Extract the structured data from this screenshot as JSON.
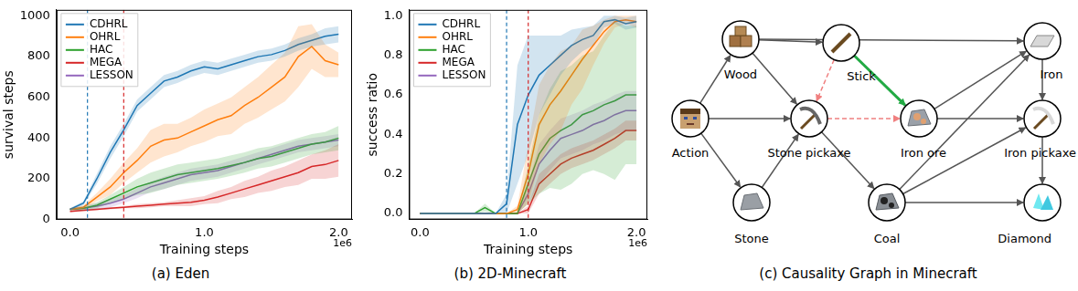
{
  "chart_data": [
    {
      "type": "line",
      "title": "(a) Eden",
      "x_label": "Training steps",
      "y_label": "survival steps",
      "x_offset_label": "1e6",
      "x": [
        0,
        0.1,
        0.2,
        0.3,
        0.4,
        0.5,
        0.6,
        0.7,
        0.8,
        0.9,
        1.0,
        1.1,
        1.2,
        1.3,
        1.4,
        1.5,
        1.6,
        1.7,
        1.8,
        1.9,
        2.0
      ],
      "xlim": [
        -0.1,
        2.1
      ],
      "xticks": [
        {
          "value": 0,
          "label": "0.0"
        },
        {
          "value": 1,
          "label": "1.0"
        },
        {
          "value": 2,
          "label": "2.0"
        }
      ],
      "ylim": [
        0,
        1030
      ],
      "yticks": [
        0,
        200,
        400,
        600,
        800,
        1000
      ],
      "grid": false,
      "legend": "upper left",
      "vlines": [
        {
          "x": 0.13,
          "color": "#1f77b4",
          "line_style": "dashed"
        },
        {
          "x": 0.4,
          "color": "#d62728",
          "line_style": "dashed"
        }
      ],
      "series": [
        {
          "name": "CDHRL",
          "color": "#1f77b4",
          "values": [
            50,
            80,
            200,
            330,
            440,
            560,
            620,
            680,
            700,
            730,
            750,
            740,
            760,
            780,
            800,
            810,
            830,
            860,
            880,
            900,
            910
          ],
          "errors": [
            5,
            10,
            25,
            30,
            30,
            30,
            30,
            30,
            30,
            30,
            30,
            30,
            30,
            30,
            30,
            30,
            30,
            30,
            30,
            40,
            40
          ]
        },
        {
          "name": "OHRL",
          "color": "#ff7f0e",
          "values": [
            50,
            60,
            110,
            160,
            230,
            290,
            360,
            390,
            400,
            430,
            460,
            490,
            510,
            560,
            600,
            650,
            700,
            800,
            850,
            780,
            760
          ],
          "errors": [
            5,
            10,
            20,
            40,
            50,
            60,
            80,
            80,
            70,
            70,
            80,
            80,
            90,
            90,
            100,
            110,
            120,
            150,
            110,
            80,
            60
          ]
        },
        {
          "name": "HAC",
          "color": "#2ca02c",
          "values": [
            50,
            55,
            70,
            100,
            130,
            160,
            180,
            200,
            220,
            230,
            240,
            250,
            265,
            280,
            300,
            310,
            330,
            350,
            370,
            380,
            400
          ],
          "errors": [
            5,
            10,
            15,
            20,
            30,
            40,
            50,
            50,
            50,
            50,
            50,
            50,
            50,
            50,
            50,
            50,
            50,
            50,
            50,
            50,
            60
          ]
        },
        {
          "name": "MEGA",
          "color": "#d62728",
          "values": [
            40,
            45,
            50,
            55,
            60,
            65,
            70,
            75,
            80,
            85,
            95,
            110,
            130,
            150,
            170,
            190,
            210,
            230,
            260,
            270,
            290
          ],
          "errors": [
            5,
            5,
            5,
            5,
            5,
            10,
            10,
            10,
            15,
            20,
            20,
            30,
            30,
            40,
            40,
            50,
            50,
            60,
            60,
            70,
            80
          ]
        },
        {
          "name": "LESSON",
          "color": "#9467bd",
          "values": [
            50,
            55,
            65,
            80,
            100,
            130,
            160,
            180,
            200,
            220,
            230,
            240,
            260,
            280,
            300,
            320,
            340,
            360,
            370,
            380,
            390
          ],
          "errors": [
            5,
            10,
            15,
            20,
            20,
            25,
            25,
            30,
            30,
            30,
            30,
            30,
            30,
            30,
            30,
            30,
            30,
            30,
            30,
            30,
            30
          ]
        }
      ]
    },
    {
      "type": "line",
      "title": "(b) 2D-Minecraft",
      "x_label": "Training steps",
      "y_label": "success ratio",
      "x_offset_label": "1e6",
      "x": [
        0,
        0.1,
        0.2,
        0.3,
        0.4,
        0.5,
        0.6,
        0.7,
        0.8,
        0.9,
        1.0,
        1.1,
        1.2,
        1.3,
        1.4,
        1.5,
        1.6,
        1.7,
        1.8,
        1.9,
        2.0
      ],
      "xlim": [
        -0.1,
        2.1
      ],
      "xticks": [
        {
          "value": 0,
          "label": "0.0"
        },
        {
          "value": 1,
          "label": "1.0"
        },
        {
          "value": 2,
          "label": "2.0"
        }
      ],
      "ylim": [
        -0.03,
        1.03
      ],
      "yticks": [
        {
          "value": 0,
          "label": "0.0"
        },
        {
          "value": 0.2,
          "label": "0.2"
        },
        {
          "value": 0.4,
          "label": "0.4"
        },
        {
          "value": 0.6,
          "label": "0.6"
        },
        {
          "value": 0.8,
          "label": "0.8"
        },
        {
          "value": 1,
          "label": "1.0"
        }
      ],
      "grid": false,
      "legend": "upper left",
      "vlines": [
        {
          "x": 0.8,
          "color": "#1f77b4",
          "line_style": "dashed"
        },
        {
          "x": 1.0,
          "color": "#d62728",
          "line_style": "dashed"
        }
      ],
      "series": [
        {
          "name": "CDHRL",
          "color": "#1f77b4",
          "values": [
            0,
            0,
            0,
            0,
            0,
            0,
            0,
            0,
            0.05,
            0.45,
            0.6,
            0.7,
            0.75,
            0.8,
            0.85,
            0.88,
            0.9,
            0.97,
            0.98,
            0.96,
            0.97
          ],
          "errors": [
            0,
            0,
            0,
            0,
            0,
            0,
            0,
            0,
            0.05,
            0.3,
            0.3,
            0.2,
            0.15,
            0.1,
            0.08,
            0.06,
            0.05,
            0.03,
            0.02,
            0.03,
            0.03
          ]
        },
        {
          "name": "OHRL",
          "color": "#ff7f0e",
          "values": [
            0,
            0,
            0,
            0,
            0,
            0,
            0,
            0,
            0,
            0.02,
            0.2,
            0.45,
            0.55,
            0.62,
            0.7,
            0.78,
            0.85,
            0.92,
            0.97,
            0.98,
            0.97
          ],
          "errors": [
            0,
            0,
            0,
            0,
            0,
            0,
            0,
            0,
            0,
            0.02,
            0.15,
            0.2,
            0.2,
            0.2,
            0.15,
            0.15,
            0.1,
            0.06,
            0.03,
            0.02,
            0.03
          ]
        },
        {
          "name": "HAC",
          "color": "#2ca02c",
          "values": [
            0,
            0,
            0,
            0,
            0,
            0,
            0.03,
            0,
            0,
            0,
            0.15,
            0.3,
            0.38,
            0.42,
            0.45,
            0.5,
            0.52,
            0.55,
            0.57,
            0.6,
            0.6
          ],
          "errors": [
            0,
            0,
            0,
            0,
            0,
            0,
            0.02,
            0,
            0,
            0,
            0.1,
            0.2,
            0.25,
            0.3,
            0.3,
            0.3,
            0.3,
            0.35,
            0.4,
            0.35,
            0.35
          ]
        },
        {
          "name": "MEGA",
          "color": "#d62728",
          "values": [
            0,
            0,
            0,
            0,
            0,
            0,
            0,
            0,
            0,
            0,
            0.02,
            0.15,
            0.2,
            0.25,
            0.28,
            0.3,
            0.32,
            0.35,
            0.38,
            0.42,
            0.42
          ],
          "errors": [
            0,
            0,
            0,
            0,
            0,
            0,
            0,
            0,
            0,
            0,
            0.02,
            0.05,
            0.05,
            0.05,
            0.05,
            0.05,
            0.05,
            0.05,
            0.05,
            0.05,
            0.05
          ]
        },
        {
          "name": "LESSON",
          "color": "#9467bd",
          "values": [
            0,
            0,
            0,
            0,
            0,
            0,
            0,
            0,
            0,
            0,
            0.1,
            0.25,
            0.32,
            0.38,
            0.4,
            0.42,
            0.45,
            0.47,
            0.5,
            0.52,
            0.52
          ],
          "errors": [
            0,
            0,
            0,
            0,
            0,
            0,
            0,
            0,
            0,
            0,
            0.05,
            0.1,
            0.1,
            0.1,
            0.1,
            0.1,
            0.1,
            0.1,
            0.1,
            0.1,
            0.1
          ]
        }
      ]
    }
  ],
  "diagram": {
    "title": "(c) Causality Graph in Minecraft",
    "nodes": [
      {
        "label": "Action"
      },
      {
        "label": "Wood"
      },
      {
        "label": "Stick"
      },
      {
        "label": "Stone pickaxe"
      },
      {
        "label": "Stone"
      },
      {
        "label": "Iron ore"
      },
      {
        "label": "Coal"
      },
      {
        "label": "Iron"
      },
      {
        "label": "Iron pickaxe"
      },
      {
        "label": "Diamond"
      }
    ],
    "edges": [
      {
        "from": 0,
        "to": 1,
        "color": "#555555",
        "line_style": "solid"
      },
      {
        "from": 0,
        "to": 3,
        "color": "#555555",
        "line_style": "solid"
      },
      {
        "from": 0,
        "to": 4,
        "color": "#555555",
        "line_style": "solid"
      },
      {
        "from": 1,
        "to": 2,
        "color": "#555555",
        "line_style": "solid"
      },
      {
        "from": 1,
        "to": 3,
        "color": "#555555",
        "line_style": "solid"
      },
      {
        "from": 1,
        "to": 7,
        "color": "#555555",
        "line_style": "solid"
      },
      {
        "from": 4,
        "to": 3,
        "color": "#555555",
        "line_style": "solid"
      },
      {
        "from": 3,
        "to": 6,
        "color": "#555555",
        "line_style": "solid"
      },
      {
        "from": 5,
        "to": 7,
        "color": "#555555",
        "line_style": "solid"
      },
      {
        "from": 5,
        "to": 8,
        "color": "#555555",
        "line_style": "solid"
      },
      {
        "from": 6,
        "to": 7,
        "color": "#555555",
        "line_style": "solid"
      },
      {
        "from": 6,
        "to": 8,
        "color": "#555555",
        "line_style": "solid"
      },
      {
        "from": 6,
        "to": 9,
        "color": "#555555",
        "line_style": "solid"
      },
      {
        "from": 7,
        "to": 8,
        "color": "#555555",
        "line_style": "solid"
      },
      {
        "from": 8,
        "to": 9,
        "color": "#555555",
        "line_style": "solid"
      },
      {
        "from": 2,
        "to": 3,
        "color": "#f08080",
        "line_style": "dashed"
      },
      {
        "from": 3,
        "to": 5,
        "color": "#f08080",
        "line_style": "dashed"
      },
      {
        "from": 2,
        "to": 5,
        "color": "#22aa44",
        "line_style": "solid"
      }
    ]
  }
}
